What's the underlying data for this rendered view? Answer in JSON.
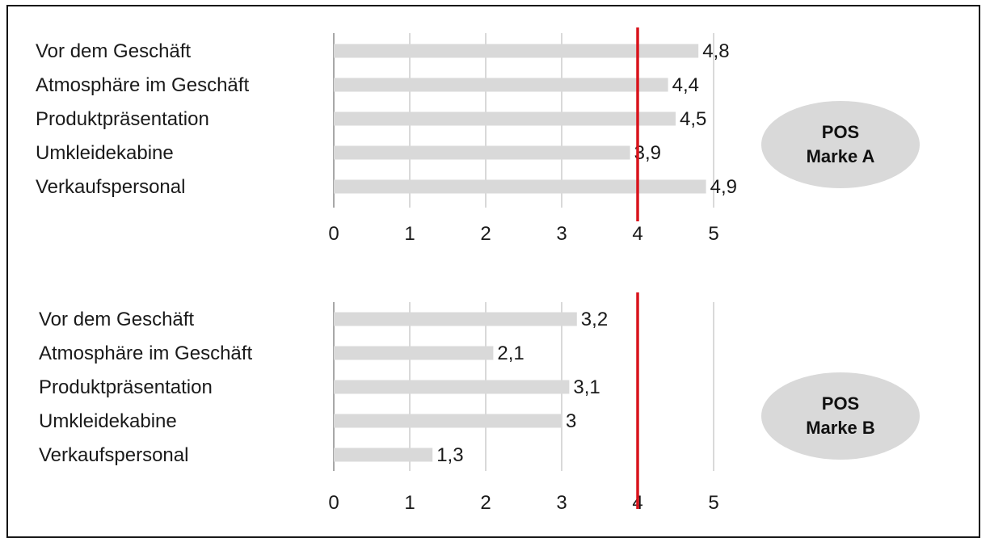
{
  "chart_data": [
    {
      "type": "bar",
      "orientation": "horizontal",
      "categories": [
        "Vor dem Geschäft",
        "Atmosphäre im Geschäft",
        "Produktpräsentation",
        "Umkleidekabine",
        "Verkaufspersonal"
      ],
      "values": [
        4.8,
        4.4,
        4.5,
        3.9,
        4.9
      ],
      "value_labels": [
        "4,8",
        "4,4",
        "4,5",
        "3,9",
        "4,9"
      ],
      "xlim": [
        0,
        5
      ],
      "ticks": [
        0,
        1,
        2,
        3,
        4,
        5
      ],
      "reference_line": 4,
      "grid": true,
      "badge": {
        "line1": "POS",
        "line2": "Marke A"
      }
    },
    {
      "type": "bar",
      "orientation": "horizontal",
      "categories": [
        "Vor dem Geschäft",
        "Atmosphäre im Geschäft",
        "Produktpräsentation",
        "Umkleidekabine",
        "Verkaufspersonal"
      ],
      "values": [
        3.2,
        2.1,
        3.1,
        3.0,
        1.3
      ],
      "value_labels": [
        "3,2",
        "2,1",
        "3,1",
        "3",
        "1,3"
      ],
      "xlim": [
        0,
        5
      ],
      "ticks": [
        0,
        1,
        2,
        3,
        4,
        5
      ],
      "reference_line": 4,
      "grid": true,
      "badge": {
        "line1": "POS",
        "line2": "Marke B"
      }
    }
  ],
  "colors": {
    "bar": "#d9d9d9",
    "reference_line": "#d9131c",
    "grid": "#b3b3b3",
    "badge": "#d9d9d9"
  }
}
